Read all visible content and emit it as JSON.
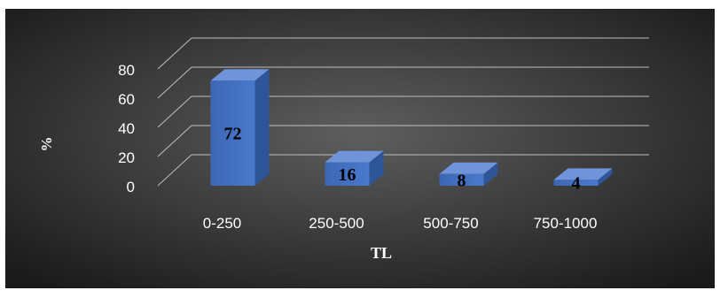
{
  "chart_data": {
    "type": "bar",
    "title": "",
    "title_visible_fragment": "…p… …g…",
    "categories": [
      "0-250",
      "250-500",
      "500-750",
      "750-1000"
    ],
    "values": [
      72,
      16,
      8,
      4
    ],
    "data_labels": [
      "72",
      "16",
      "8",
      "4"
    ],
    "xlabel": "TL",
    "ylabel": "%",
    "ylim": [
      0,
      80
    ],
    "yticks": [
      0,
      20,
      40,
      60,
      80
    ],
    "grid": true,
    "three_d": true,
    "legend": "none",
    "colors": {
      "bar_front": "#4472c4",
      "bar_side": "#2e5597",
      "bar_top": "#6f94d9",
      "axis_text": "#ffffff",
      "data_label": "#000000",
      "grid": "#bfbfbf",
      "background_center": "#595959",
      "background_edge": "#1a1a1a"
    }
  }
}
